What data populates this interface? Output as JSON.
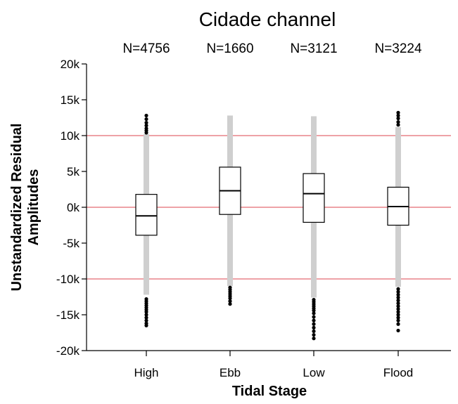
{
  "chart_data": {
    "type": "box",
    "title": "Cidade channel",
    "xlabel": "Tidal Stage",
    "ylabel_lines": [
      "Unstandardized Residual",
      "Amplitudes"
    ],
    "ylim": [
      -20000,
      20000
    ],
    "yticks": [
      {
        "value": 20000,
        "label": "20k"
      },
      {
        "value": 15000,
        "label": "15k"
      },
      {
        "value": 10000,
        "label": "10k"
      },
      {
        "value": 5000,
        "label": "5k"
      },
      {
        "value": 0,
        "label": "0k"
      },
      {
        "value": -5000,
        "label": "-5k"
      },
      {
        "value": -10000,
        "label": "-10k"
      },
      {
        "value": -15000,
        "label": "-15k"
      },
      {
        "value": -20000,
        "label": "-20k"
      }
    ],
    "reference_lines": [
      10000,
      0,
      -10000
    ],
    "colors": {
      "reference_line": "#e8848a",
      "whisker": "#cfcfcf",
      "box": "#000000",
      "points": "#000000"
    },
    "categories": [
      "High",
      "Ebb",
      "Low",
      "Flood"
    ],
    "n_labels": [
      "N=4756",
      "N=1660",
      "N=3121",
      "N=3224"
    ],
    "boxes": [
      {
        "q1": -3900,
        "median": -1200,
        "q3": 1800,
        "whisker_low": -12200,
        "whisker_high": 10200,
        "outliers_high": [
          10400,
          10700,
          11000,
          11400,
          11800,
          12300,
          12800
        ],
        "outliers_low": [
          -12800,
          -13100,
          -13400,
          -13700,
          -14000,
          -14300,
          -14600,
          -15000,
          -15400,
          -15800,
          -16200,
          -16500
        ]
      },
      {
        "q1": -1000,
        "median": 2300,
        "q3": 5600,
        "whisker_low": -11000,
        "whisker_high": 12800,
        "outliers_high": [],
        "outliers_low": [
          -11200,
          -11500,
          -11800,
          -12100,
          -12400,
          -12700,
          -13100,
          -13500
        ]
      },
      {
        "q1": -2100,
        "median": 1900,
        "q3": 4700,
        "whisker_low": -12600,
        "whisker_high": 12700,
        "outliers_high": [],
        "outliers_low": [
          -12900,
          -13200,
          -13500,
          -13800,
          -14100,
          -14400,
          -14800,
          -15300,
          -15800,
          -16300,
          -16800,
          -17300,
          -17800,
          -18300
        ]
      },
      {
        "q1": -2500,
        "median": 100,
        "q3": 2800,
        "whisker_low": -11100,
        "whisker_high": 11200,
        "outliers_high": [
          11500,
          11900,
          12400,
          12800,
          13200
        ],
        "outliers_low": [
          -11400,
          -11800,
          -12200,
          -12600,
          -13000,
          -13400,
          -13800,
          -14200,
          -14600,
          -15000,
          -15400,
          -15800,
          -16300,
          -17200
        ]
      }
    ]
  }
}
